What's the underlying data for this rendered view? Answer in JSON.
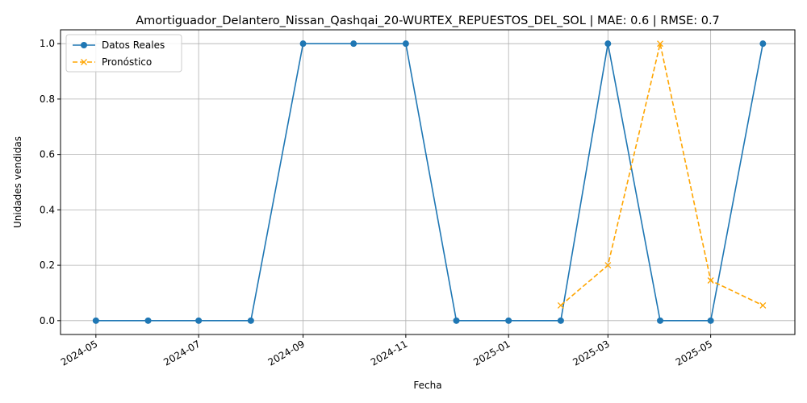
{
  "chart_data": {
    "type": "line",
    "title": "Amortiguador_Delantero_Nissan_Qashqai_20-WURTEX_REPUESTOS_DEL_SOL | MAE: 0.6 | RMSE: 0.7",
    "xlabel": "Fecha",
    "ylabel": "Unidades vendidas",
    "x_tick_labels": [
      "2024-05",
      "2024-07",
      "2024-09",
      "2024-11",
      "2025-01",
      "2025-03",
      "2025-05"
    ],
    "y_tick_labels": [
      "0.0",
      "0.2",
      "0.4",
      "0.6",
      "0.8",
      "1.0"
    ],
    "xlim": [
      "2024-04-10",
      "2025-06-20"
    ],
    "ylim": [
      -0.05,
      1.05
    ],
    "grid": true,
    "legend_position": "top-left",
    "series": [
      {
        "name": "Datos Reales",
        "color": "#1f77b4",
        "style": "solid",
        "marker": "circle",
        "x": [
          "2024-05-01",
          "2024-06-01",
          "2024-07-01",
          "2024-08-01",
          "2024-09-01",
          "2024-10-01",
          "2024-11-01",
          "2024-12-01",
          "2025-01-01",
          "2025-02-01",
          "2025-03-01",
          "2025-04-01",
          "2025-05-01",
          "2025-06-01"
        ],
        "values": [
          0,
          0,
          0,
          0,
          1,
          1,
          1,
          0,
          0,
          0,
          1,
          0,
          0,
          1
        ]
      },
      {
        "name": "Pronóstico",
        "color": "#ffa500",
        "style": "dashed",
        "marker": "x",
        "x": [
          "2025-02-01",
          "2025-03-01",
          "2025-04-01",
          "2025-05-01",
          "2025-06-01"
        ],
        "values": [
          0.055,
          0.2,
          1.0,
          0.145,
          0.055
        ]
      }
    ]
  }
}
